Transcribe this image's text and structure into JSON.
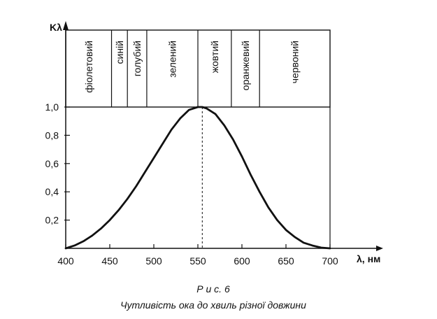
{
  "chart_data": {
    "type": "line",
    "xlabel": "λ, нм",
    "ylabel": "Kλ",
    "x_ticks": [
      400,
      450,
      500,
      550,
      600,
      650,
      700
    ],
    "y_ticks": [
      0.2,
      0.4,
      0.6,
      0.8,
      1.0
    ],
    "y_tick_labels": [
      "0,2",
      "0,4",
      "0,6",
      "0,8",
      "1,0"
    ],
    "xlim": [
      400,
      700
    ],
    "ylim": [
      0,
      1.0
    ],
    "grid": false,
    "peak": {
      "x": 555,
      "y": 1.0
    },
    "series": [
      {
        "x": [
          400,
          410,
          420,
          430,
          440,
          450,
          460,
          470,
          480,
          490,
          500,
          510,
          520,
          530,
          540,
          550,
          555,
          560,
          570,
          580,
          590,
          600,
          610,
          620,
          630,
          640,
          650,
          660,
          670,
          680,
          690,
          700
        ],
        "y": [
          0.0,
          0.02,
          0.05,
          0.09,
          0.14,
          0.2,
          0.27,
          0.35,
          0.44,
          0.54,
          0.64,
          0.74,
          0.84,
          0.92,
          0.98,
          1.0,
          1.0,
          0.99,
          0.95,
          0.87,
          0.77,
          0.65,
          0.52,
          0.4,
          0.29,
          0.2,
          0.13,
          0.08,
          0.04,
          0.02,
          0.005,
          0.0
        ]
      }
    ],
    "color_bands": [
      {
        "label": "фіолетовий",
        "from": 400,
        "to": 452
      },
      {
        "label": "синій",
        "from": 452,
        "to": 470
      },
      {
        "label": "голубий",
        "from": 470,
        "to": 492
      },
      {
        "label": "зелений",
        "from": 492,
        "to": 550
      },
      {
        "label": "жовтий",
        "from": 550,
        "to": 588
      },
      {
        "label": "оранжевий",
        "from": 588,
        "to": 620
      },
      {
        "label": "червоний",
        "from": 620,
        "to": 700
      }
    ]
  },
  "caption": {
    "figure_label": "Р и с.  6",
    "text": "Чутливість ока до хвиль різної довжини"
  }
}
